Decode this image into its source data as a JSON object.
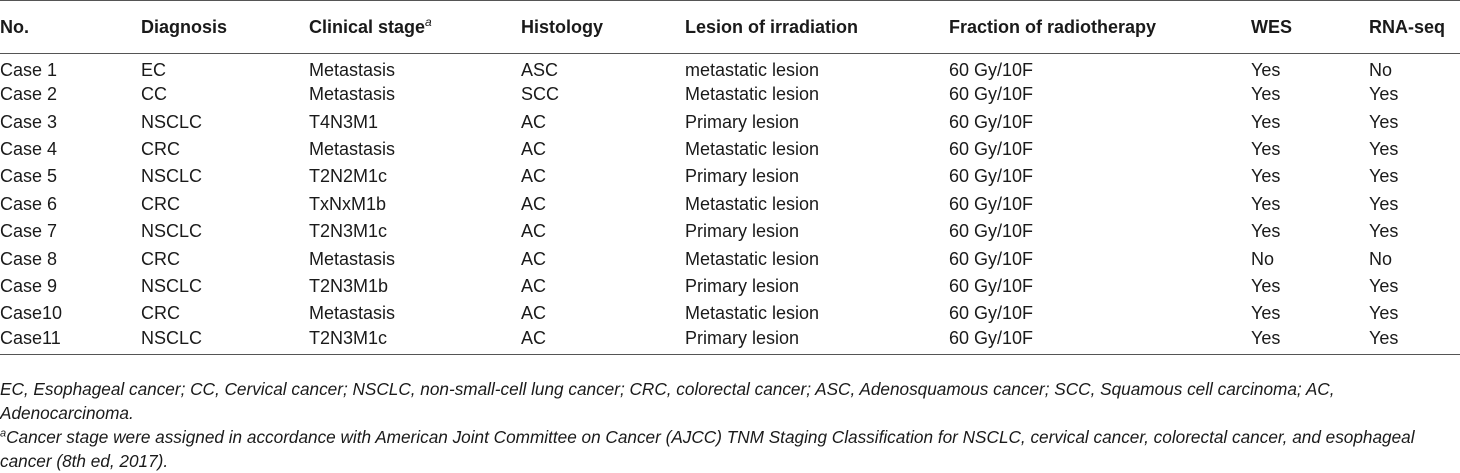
{
  "table": {
    "headers": {
      "no": "No.",
      "diagnosis": "Diagnosis",
      "clinical_stage": "Clinical stage",
      "clinical_stage_sup": "a",
      "histology": "Histology",
      "lesion": "Lesion of irradiation",
      "fraction": "Fraction of radiotherapy",
      "wes": "WES",
      "rnaseq": "RNA-seq"
    },
    "rows": [
      [
        "Case 1",
        "EC",
        "Metastasis",
        "ASC",
        "metastatic lesion",
        "60 Gy/10F",
        "Yes",
        "No"
      ],
      [
        "Case 2",
        "CC",
        "Metastasis",
        "SCC",
        "Metastatic lesion",
        "60 Gy/10F",
        "Yes",
        "Yes"
      ],
      [
        "Case 3",
        "NSCLC",
        "T4N3M1",
        "AC",
        "Primary lesion",
        "60 Gy/10F",
        "Yes",
        "Yes"
      ],
      [
        "Case 4",
        "CRC",
        "Metastasis",
        "AC",
        "Metastatic lesion",
        "60 Gy/10F",
        "Yes",
        "Yes"
      ],
      [
        "Case 5",
        "NSCLC",
        "T2N2M1c",
        "AC",
        "Primary lesion",
        "60 Gy/10F",
        "Yes",
        "Yes"
      ],
      [
        "Case 6",
        "CRC",
        "TxNxM1b",
        "AC",
        "Metastatic lesion",
        "60 Gy/10F",
        "Yes",
        "Yes"
      ],
      [
        "Case 7",
        "NSCLC",
        "T2N3M1c",
        "AC",
        "Primary lesion",
        "60 Gy/10F",
        "Yes",
        "Yes"
      ],
      [
        "Case 8",
        "CRC",
        "Metastasis",
        "AC",
        "Metastatic lesion",
        "60 Gy/10F",
        "No",
        "No"
      ],
      [
        "Case 9",
        "NSCLC",
        "T2N3M1b",
        "AC",
        "Primary lesion",
        "60 Gy/10F",
        "Yes",
        "Yes"
      ],
      [
        "Case10",
        "CRC",
        "Metastasis",
        "AC",
        "Metastatic lesion",
        "60 Gy/10F",
        "Yes",
        "Yes"
      ],
      [
        "Case11",
        "NSCLC",
        "T2N3M1c",
        "AC",
        "Primary lesion",
        "60 Gy/10F",
        "Yes",
        "Yes"
      ]
    ]
  },
  "footnotes": {
    "abbreviations": "EC, Esophageal cancer; CC, Cervical cancer; NSCLC, non-small-cell lung cancer; CRC, colorectal cancer; ASC, Adenosquamous cancer; SCC, Squamous cell carcinoma; AC, Adenocarcinoma.",
    "staging_marker": "a",
    "staging": "Cancer stage were assigned in accordance with American Joint Committee on Cancer (AJCC) TNM Staging Classification for NSCLC, cervical cancer, colorectal cancer, and esophageal cancer (8th ed, 2017)."
  }
}
